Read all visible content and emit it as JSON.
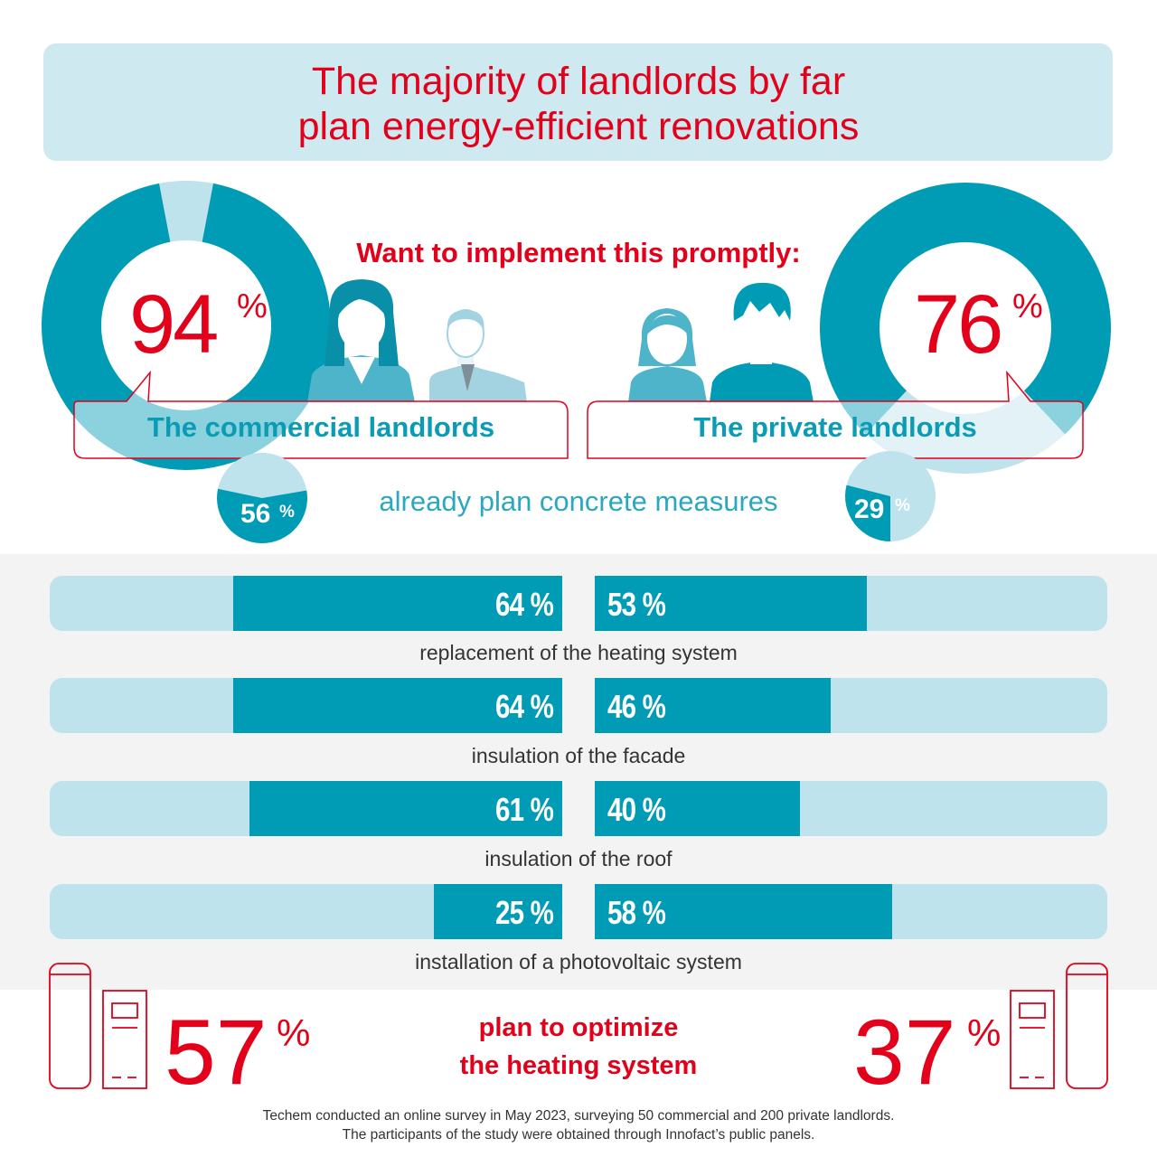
{
  "title": {
    "line1": "The majority of landlords by far",
    "line2": "plan energy-efficient renovations"
  },
  "headline": "Want to implement this promptly:",
  "percent_sign": "%",
  "groups": {
    "commercial": {
      "label": "The commercial landlords",
      "prompt_pct": "94",
      "concrete_pct": "56"
    },
    "private": {
      "label": "The private landlords",
      "prompt_pct": "76",
      "concrete_pct": "29"
    }
  },
  "concrete_label": "already plan concrete measures",
  "heating": {
    "label_line1": "plan to optimize",
    "label_line2": "the heating system",
    "commercial_pct": "57",
    "private_pct": "37"
  },
  "footnote": {
    "line1": "Techem conducted an online survey in May 2023, surveying 50 commercial and 200 private landlords.",
    "line2": "The participants of the study were obtained through Innofact’s public panels."
  },
  "colors": {
    "accent_red": "#e2001a",
    "teal": "#009bb5",
    "light_teal": "#bfe3ec",
    "title_bg": "#cfe9f0"
  },
  "icons": [
    "businesswoman-icon",
    "businessman-icon",
    "woman-icon",
    "man-icon",
    "heat-pump-icon",
    "boiler-icon"
  ],
  "chart_data": [
    {
      "type": "pie",
      "title": "Want to implement this promptly:",
      "categories": [
        "The commercial landlords",
        "The private landlords"
      ],
      "values": [
        94,
        76
      ]
    },
    {
      "type": "pie",
      "title": "already plan concrete measures",
      "categories": [
        "The commercial landlords",
        "The private landlords"
      ],
      "values": [
        56,
        29
      ]
    },
    {
      "type": "bar",
      "categories": [
        "replacement of the heating system",
        "insulation of the facade",
        "insulation of the roof",
        "installation of a photovoltaic system"
      ],
      "series": [
        {
          "values": [
            64,
            64,
            61,
            25
          ],
          "labels": [
            "64 %",
            "64 %",
            "61 %",
            "25 %"
          ]
        },
        {
          "values": [
            53,
            46,
            40,
            58
          ],
          "labels": [
            "53 %",
            "46 %",
            "40 %",
            "58 %"
          ]
        }
      ],
      "ylim": [
        0,
        100
      ]
    },
    {
      "type": "bar",
      "title": "plan to optimize the heating system",
      "categories": [
        "The commercial landlords",
        "The private landlords"
      ],
      "values": [
        57,
        37
      ]
    }
  ]
}
